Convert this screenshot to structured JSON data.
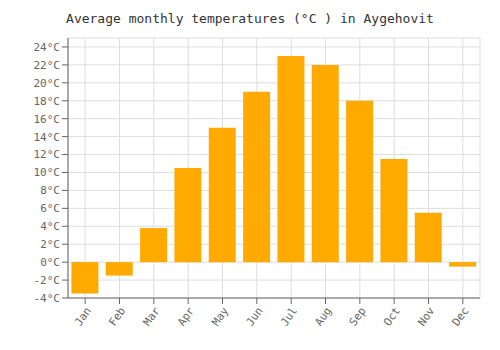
{
  "chart_data": {
    "type": "bar",
    "title": "Average monthly temperatures (°C ) in Aygehovit",
    "categories": [
      "Jan",
      "Feb",
      "Mar",
      "Apr",
      "May",
      "Jun",
      "Jul",
      "Aug",
      "Sep",
      "Oct",
      "Nov",
      "Dec"
    ],
    "values": [
      -3.5,
      -1.5,
      3.8,
      10.5,
      15.0,
      19.0,
      23.0,
      22.0,
      18.0,
      11.5,
      5.5,
      -0.5
    ],
    "color": "#FFAA00",
    "ylim": [
      -4,
      25
    ],
    "yticks": [
      {
        "value": -4,
        "label": "-4°C"
      },
      {
        "value": -2,
        "label": "-2°C"
      },
      {
        "value": 0,
        "label": "0°C"
      },
      {
        "value": 2,
        "label": "2°C"
      },
      {
        "value": 4,
        "label": "4°C"
      },
      {
        "value": 6,
        "label": "6°C"
      },
      {
        "value": 8,
        "label": "8°C"
      },
      {
        "value": 10,
        "label": "10°C"
      },
      {
        "value": 12,
        "label": "12°C"
      },
      {
        "value": 14,
        "label": "14°C"
      },
      {
        "value": 16,
        "label": "16°C"
      },
      {
        "value": 18,
        "label": "18°C"
      },
      {
        "value": 20,
        "label": "20°C"
      },
      {
        "value": 22,
        "label": "22°C"
      },
      {
        "value": 24,
        "label": "24°C"
      }
    ],
    "grid": true
  }
}
